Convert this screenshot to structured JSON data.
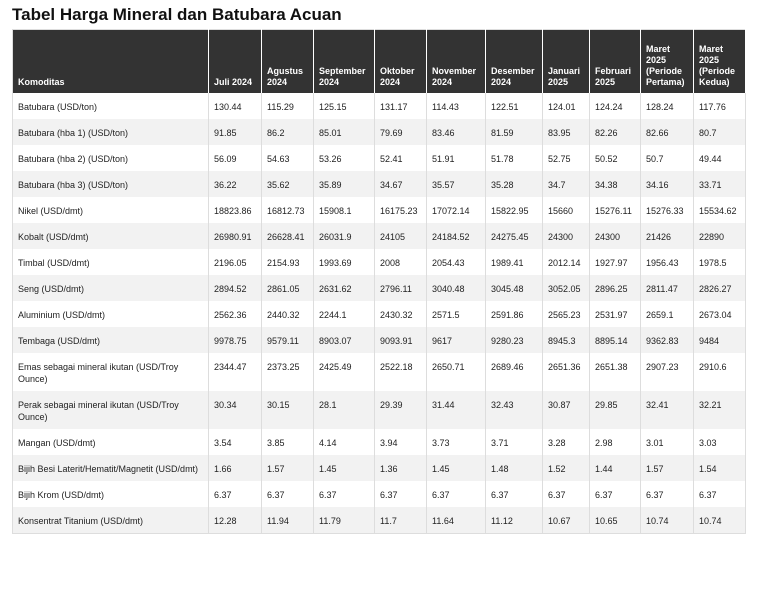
{
  "title": "Tabel Harga Mineral dan Batubara Acuan",
  "table": {
    "header": [
      "Komoditas",
      "Juli 2024",
      "Agustus 2024",
      "September 2024",
      "Oktober 2024",
      "November 2024",
      "Desember 2024",
      "Januari 2025",
      "Februari 2025",
      "Maret 2025 (Periode Pertama)",
      "Maret 2025 (Periode Kedua)"
    ],
    "rows": [
      [
        "Batubara (USD/ton)",
        "130.44",
        "115.29",
        "125.15",
        "131.17",
        "114.43",
        "122.51",
        "124.01",
        "124.24",
        "128.24",
        "117.76"
      ],
      [
        "Batubara (hba 1) (USD/ton)",
        "91.85",
        "86.2",
        "85.01",
        "79.69",
        "83.46",
        "81.59",
        "83.95",
        "82.26",
        "82.66",
        "80.7"
      ],
      [
        "Batubara (hba 2) (USD/ton)",
        "56.09",
        "54.63",
        "53.26",
        "52.41",
        "51.91",
        "51.78",
        "52.75",
        "50.52",
        "50.7",
        "49.44"
      ],
      [
        "Batubara (hba 3) (USD/ton)",
        "36.22",
        "35.62",
        "35.89",
        "34.67",
        "35.57",
        "35.28",
        "34.7",
        "34.38",
        "34.16",
        "33.71"
      ],
      [
        "Nikel (USD/dmt)",
        "18823.86",
        "16812.73",
        "15908.1",
        "16175.23",
        "17072.14",
        "15822.95",
        "15660",
        "15276.11",
        "15276.33",
        "15534.62"
      ],
      [
        "Kobalt (USD/dmt)",
        "26980.91",
        "26628.41",
        "26031.9",
        "24105",
        "24184.52",
        "24275.45",
        "24300",
        "24300",
        "21426",
        "22890"
      ],
      [
        "Timbal (USD/dmt)",
        "2196.05",
        "2154.93",
        "1993.69",
        "2008",
        "2054.43",
        "1989.41",
        "2012.14",
        "1927.97",
        "1956.43",
        "1978.5"
      ],
      [
        "Seng (USD/dmt)",
        "2894.52",
        "2861.05",
        "2631.62",
        "2796.11",
        "3040.48",
        "3045.48",
        "3052.05",
        "2896.25",
        "2811.47",
        "2826.27"
      ],
      [
        "Aluminium (USD/dmt)",
        "2562.36",
        "2440.32",
        "2244.1",
        "2430.32",
        "2571.5",
        "2591.86",
        "2565.23",
        "2531.97",
        "2659.1",
        "2673.04"
      ],
      [
        "Tembaga (USD/dmt)",
        "9978.75",
        "9579.11",
        "8903.07",
        "9093.91",
        "9617",
        "9280.23",
        "8945.3",
        "8895.14",
        "9362.83",
        "9484"
      ],
      [
        "Emas sebagai mineral ikutan (USD/Troy Ounce)",
        "2344.47",
        "2373.25",
        "2425.49",
        "2522.18",
        "2650.71",
        "2689.46",
        "2651.36",
        "2651.38",
        "2907.23",
        "2910.6"
      ],
      [
        "Perak sebagai mineral ikutan (USD/Troy Ounce)",
        "30.34",
        "30.15",
        "28.1",
        "29.39",
        "31.44",
        "32.43",
        "30.87",
        "29.85",
        "32.41",
        "32.21"
      ],
      [
        "Mangan (USD/dmt)",
        "3.54",
        "3.85",
        "4.14",
        "3.94",
        "3.73",
        "3.71",
        "3.28",
        "2.98",
        "3.01",
        "3.03"
      ],
      [
        "Bijih Besi Laterit/Hematit/Magnetit (USD/dmt)",
        "1.66",
        "1.57",
        "1.45",
        "1.36",
        "1.45",
        "1.48",
        "1.52",
        "1.44",
        "1.57",
        "1.54"
      ],
      [
        "Bijih Krom (USD/dmt)",
        "6.37",
        "6.37",
        "6.37",
        "6.37",
        "6.37",
        "6.37",
        "6.37",
        "6.37",
        "6.37",
        "6.37"
      ],
      [
        "Konsentrat Titanium (USD/dmt)",
        "12.28",
        "11.94",
        "11.79",
        "11.7",
        "11.64",
        "11.12",
        "10.67",
        "10.65",
        "10.74",
        "10.74"
      ]
    ]
  }
}
